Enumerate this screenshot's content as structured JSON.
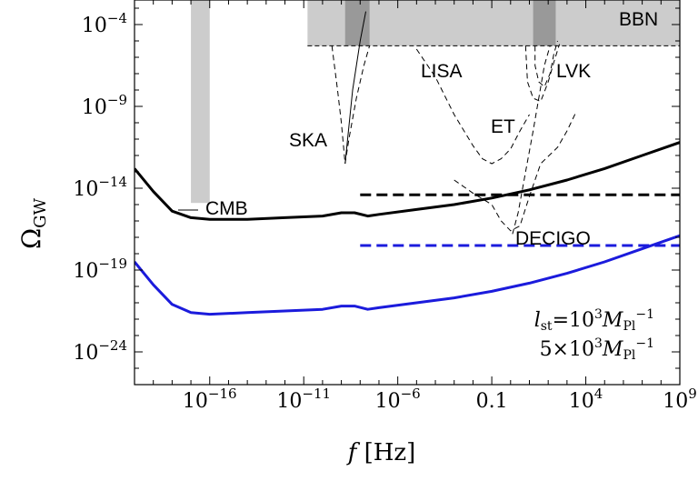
{
  "chart_data": {
    "type": "line",
    "xlabel_italic": "f",
    "xlabel_unit": "[Hz]",
    "ylabel_main": "Ω",
    "ylabel_sub": "GW",
    "x_scale": "log10",
    "y_scale": "log10",
    "xlim_log10": [
      -20,
      9
    ],
    "ylim_log10": [
      -26,
      -2.5
    ],
    "x_ticks": [
      {
        "log10": -16,
        "label": "10",
        "sup": "−16"
      },
      {
        "log10": -11,
        "label": "10",
        "sup": "−11"
      },
      {
        "log10": -6,
        "label": "10",
        "sup": "−6"
      },
      {
        "log10": -1,
        "label": "0.1",
        "sup": ""
      },
      {
        "log10": 4,
        "label": "10",
        "sup": "4"
      },
      {
        "log10": 9,
        "label": "10",
        "sup": "9"
      }
    ],
    "y_ticks": [
      {
        "log10": -4,
        "label": "10",
        "sup": "−4"
      },
      {
        "log10": -9,
        "label": "10",
        "sup": "−9"
      },
      {
        "log10": -14,
        "label": "10",
        "sup": "−14"
      },
      {
        "log10": -19,
        "label": "10",
        "sup": "−19"
      },
      {
        "log10": -24,
        "label": "10",
        "sup": "−24"
      }
    ],
    "series": [
      {
        "id": "spectrum_black",
        "color": "#000000",
        "style": "solid",
        "points": [
          [
            -20,
            -12.8
          ],
          [
            -19,
            -14.2
          ],
          [
            -18,
            -15.4
          ],
          [
            -17,
            -15.8
          ],
          [
            -16,
            -15.9
          ],
          [
            -14,
            -15.9
          ],
          [
            -12,
            -15.8
          ],
          [
            -10,
            -15.7
          ],
          [
            -9,
            -15.5
          ],
          [
            -8.3,
            -15.5
          ],
          [
            -7.6,
            -15.7
          ],
          [
            -7,
            -15.6
          ],
          [
            -5,
            -15.3
          ],
          [
            -3,
            -15
          ],
          [
            -1,
            -14.6
          ],
          [
            1,
            -14.1
          ],
          [
            3,
            -13.5
          ],
          [
            5,
            -12.8
          ],
          [
            7,
            -12
          ],
          [
            9,
            -11.2
          ]
        ]
      },
      {
        "id": "spectrum_blue",
        "color": "#1b1bdc",
        "style": "solid",
        "points": [
          [
            -20,
            -18.5
          ],
          [
            -19,
            -19.9
          ],
          [
            -18,
            -21.1
          ],
          [
            -17,
            -21.6
          ],
          [
            -16,
            -21.7
          ],
          [
            -14,
            -21.6
          ],
          [
            -12,
            -21.5
          ],
          [
            -10,
            -21.4
          ],
          [
            -9,
            -21.2
          ],
          [
            -8.3,
            -21.2
          ],
          [
            -7.6,
            -21.4
          ],
          [
            -7,
            -21.3
          ],
          [
            -5,
            -21.0
          ],
          [
            -3,
            -20.7
          ],
          [
            -1,
            -20.3
          ],
          [
            1,
            -19.8
          ],
          [
            3,
            -19.2
          ],
          [
            5,
            -18.5
          ],
          [
            7,
            -17.7
          ],
          [
            9,
            -16.9
          ]
        ]
      },
      {
        "id": "bound_black_dashed",
        "color": "#000000",
        "style": "dashed",
        "points": [
          [
            -8,
            -14.4
          ],
          [
            9,
            -14.4
          ]
        ]
      },
      {
        "id": "bound_blue_dashed",
        "color": "#1b1bdc",
        "style": "dashed",
        "points": [
          [
            -8,
            -17.5
          ],
          [
            9,
            -17.5
          ]
        ]
      }
    ],
    "regions": [
      {
        "id": "cmb_band",
        "x_log10": [
          -17,
          -16
        ],
        "y_log10": [
          -14.9,
          -2.5
        ],
        "color": "#cccccc"
      },
      {
        "id": "bbn_band",
        "x_log10": [
          -10.8,
          9
        ],
        "y_log10": [
          -5.3,
          -2.5
        ],
        "color": "#cccccc"
      },
      {
        "id": "ska_dark_band",
        "x_log10": [
          -8.8,
          -7.5
        ],
        "y_log10": [
          -5.3,
          -2.5
        ],
        "color": "#999999"
      },
      {
        "id": "lvk_dark_band",
        "x_log10": [
          1.2,
          2.4
        ],
        "y_log10": [
          -5.3,
          -2.5
        ],
        "color": "#999999"
      }
    ],
    "sensitivity_curves": [
      {
        "id": "ska",
        "points": [
          [
            -9.5,
            -5.3
          ],
          [
            -9.2,
            -8
          ],
          [
            -9,
            -10
          ],
          [
            -8.8,
            -12.5
          ],
          [
            -8.6,
            -11
          ],
          [
            -8.2,
            -8.5
          ],
          [
            -7.8,
            -6.5
          ],
          [
            -7.5,
            -5.3
          ]
        ]
      },
      {
        "id": "ska_solid",
        "points": [
          [
            -8.8,
            -12.5
          ],
          [
            -8.4,
            -8
          ],
          [
            -8.0,
            -5
          ],
          [
            -7.7,
            -3.2
          ]
        ]
      },
      {
        "id": "lisa",
        "points": [
          [
            -5,
            -5.5
          ],
          [
            -4,
            -7.2
          ],
          [
            -3,
            -9.5
          ],
          [
            -2,
            -11.4
          ],
          [
            -1.5,
            -12.2
          ],
          [
            -1,
            -12.5
          ],
          [
            -0.5,
            -12.2
          ],
          [
            0,
            -11.6
          ],
          [
            0.5,
            -10.5
          ],
          [
            1,
            -9.5
          ]
        ]
      },
      {
        "id": "decigo",
        "points": [
          [
            -3,
            -13.5
          ],
          [
            -2,
            -14.3
          ],
          [
            -1,
            -15
          ],
          [
            -0.5,
            -16
          ],
          [
            0,
            -16.6
          ],
          [
            0.5,
            -16.3
          ],
          [
            1,
            -14.5
          ],
          [
            1.6,
            -12.5
          ],
          [
            2.5,
            -11.5
          ],
          [
            3,
            -10.5
          ],
          [
            3.5,
            -9.3
          ]
        ]
      },
      {
        "id": "et",
        "points": [
          [
            0.1,
            -16.8
          ],
          [
            0.4,
            -15.5
          ],
          [
            0.8,
            -13
          ],
          [
            1.2,
            -10.5
          ],
          [
            1.5,
            -8.5
          ],
          [
            1.8,
            -6.5
          ],
          [
            2.1,
            -5.3
          ]
        ]
      },
      {
        "id": "lvk_1",
        "points": [
          [
            1.3,
            -5.3
          ],
          [
            1.3,
            -6.5
          ],
          [
            1.5,
            -7.5
          ],
          [
            1.8,
            -7.8
          ],
          [
            2.1,
            -7
          ],
          [
            2.3,
            -5.8
          ],
          [
            2.5,
            -5.0
          ]
        ]
      },
      {
        "id": "lvk_2",
        "points": [
          [
            0.8,
            -5.3
          ],
          [
            0.9,
            -7.5
          ],
          [
            1.2,
            -8.5
          ],
          [
            1.6,
            -8.7
          ],
          [
            2.0,
            -7.5
          ],
          [
            2.3,
            -6.3
          ],
          [
            2.6,
            -5.2
          ]
        ]
      }
    ],
    "annotations": [
      {
        "id": "cmb",
        "text": "CMB"
      },
      {
        "id": "bbn",
        "text": "BBN"
      },
      {
        "id": "ska",
        "text": "SKA"
      },
      {
        "id": "lisa",
        "text": "LISA"
      },
      {
        "id": "et",
        "text": "ET"
      },
      {
        "id": "lvk",
        "text": "LVK"
      },
      {
        "id": "decigo",
        "text": "DECIGO"
      }
    ],
    "legend_text": {
      "line1_l": "l",
      "line1_sub": "st",
      "line1_eq": "=10",
      "line1_exp": "3",
      "line1_M": "M",
      "line1_Msub": "Pl",
      "line1_end_sup": "−1",
      "line2_pre": "5×10",
      "line2_exp": "3",
      "line2_M": "M",
      "line2_Msub": "Pl",
      "line2_end_sup": "−1"
    }
  }
}
